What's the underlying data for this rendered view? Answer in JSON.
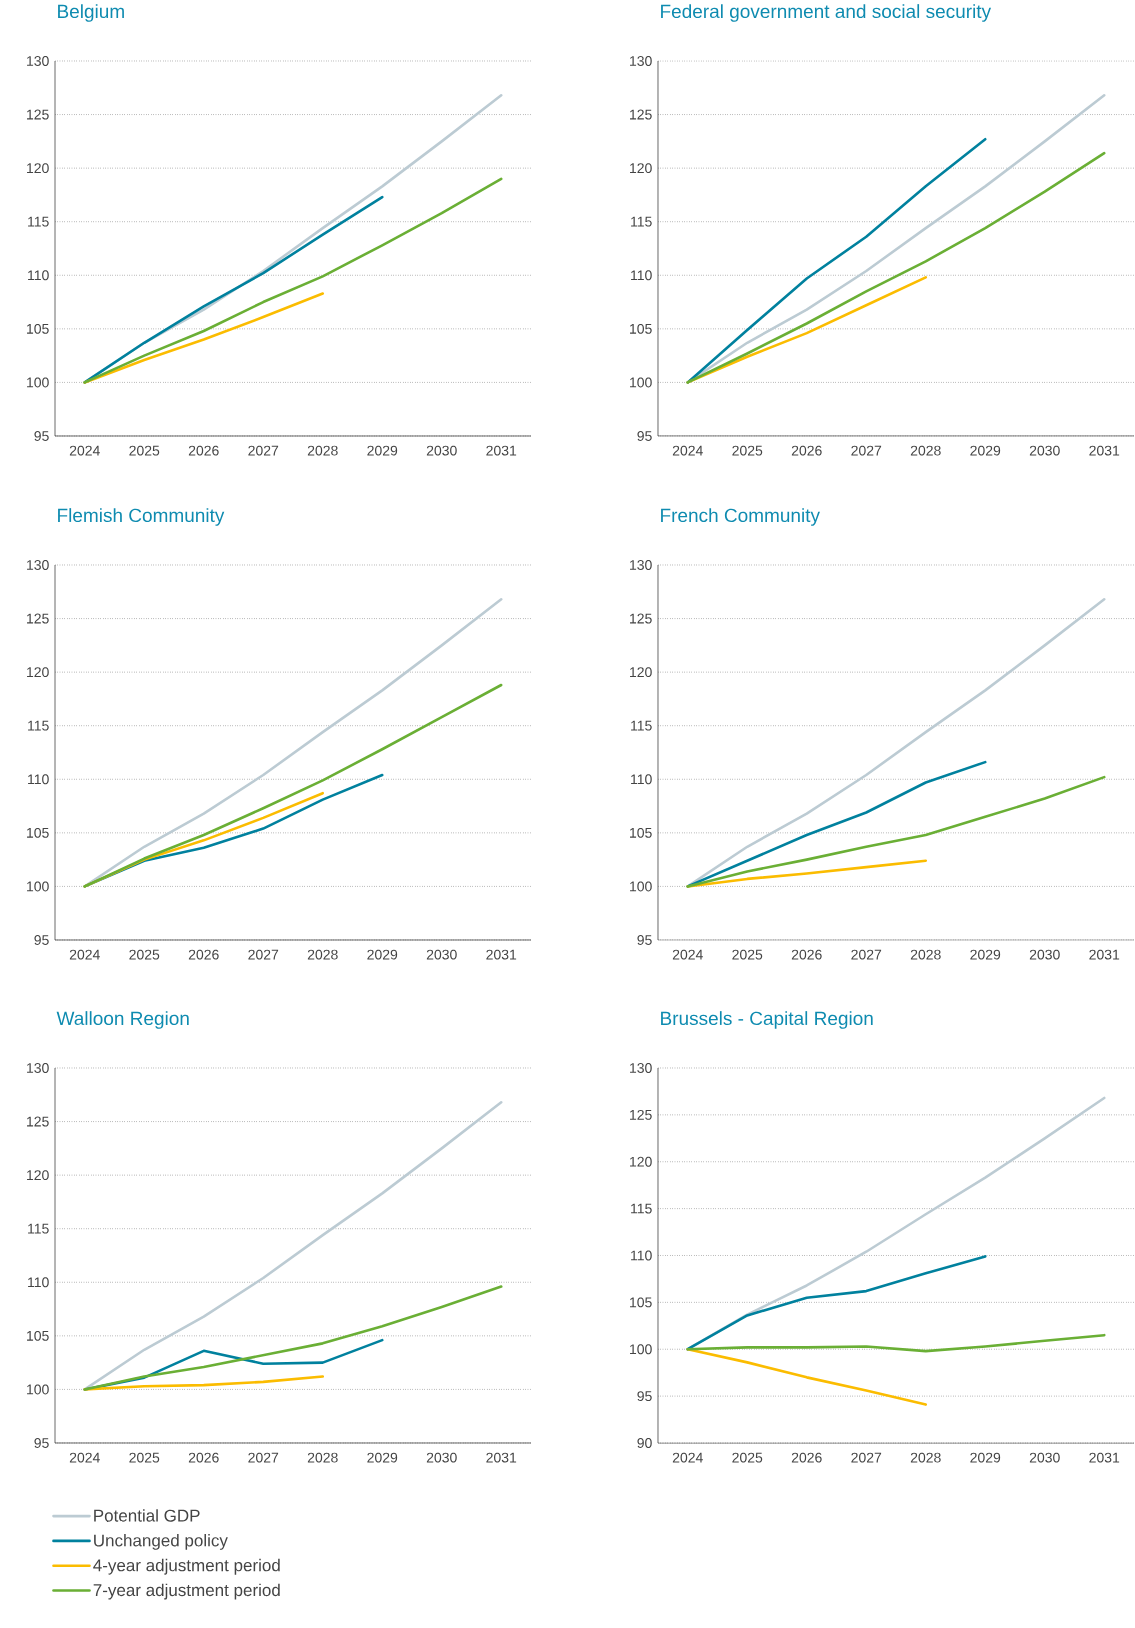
{
  "chart_data": [
    {
      "type": "line",
      "title": "Belgium",
      "categories": [
        "2024",
        "2025",
        "2026",
        "2027",
        "2028",
        "2029",
        "2030",
        "2031"
      ],
      "ylim": [
        95,
        130
      ],
      "yticks": [
        95,
        100,
        105,
        110,
        115,
        120,
        125,
        130
      ],
      "grid": "y",
      "series": [
        {
          "color": "#bccbd3",
          "values": [
            100,
            103.7,
            106.8,
            110.4,
            114.4,
            118.3,
            122.5,
            126.8
          ]
        },
        {
          "color": "#00819e",
          "values": [
            100,
            103.7,
            107.1,
            110.2,
            113.8,
            117.3,
            null,
            null
          ]
        },
        {
          "color": "#fbbc00",
          "values": [
            100,
            102.1,
            104.0,
            106.1,
            108.3,
            null,
            null,
            null
          ]
        },
        {
          "color": "#6aaf35",
          "values": [
            100,
            102.5,
            104.8,
            107.5,
            109.9,
            112.8,
            115.8,
            119.0
          ]
        }
      ]
    },
    {
      "type": "line",
      "title": "Federal government and social security",
      "categories": [
        "2024",
        "2025",
        "2026",
        "2027",
        "2028",
        "2029",
        "2030",
        "2031"
      ],
      "ylim": [
        95,
        130
      ],
      "yticks": [
        95,
        100,
        105,
        110,
        115,
        120,
        125,
        130
      ],
      "grid": "y",
      "series": [
        {
          "color": "#bccbd3",
          "values": [
            100,
            103.7,
            106.8,
            110.4,
            114.4,
            118.3,
            122.5,
            126.8
          ]
        },
        {
          "color": "#00819e",
          "values": [
            100,
            104.9,
            109.7,
            113.6,
            118.3,
            122.7,
            null,
            null
          ]
        },
        {
          "color": "#fbbc00",
          "values": [
            100,
            102.4,
            104.6,
            107.2,
            109.8,
            null,
            null,
            null
          ]
        },
        {
          "color": "#6aaf35",
          "values": [
            100,
            102.7,
            105.5,
            108.5,
            111.3,
            114.4,
            117.8,
            121.4
          ]
        }
      ]
    },
    {
      "type": "line",
      "title": "Flemish Community",
      "categories": [
        "2024",
        "2025",
        "2026",
        "2027",
        "2028",
        "2029",
        "2030",
        "2031"
      ],
      "ylim": [
        95,
        130
      ],
      "yticks": [
        95,
        100,
        105,
        110,
        115,
        120,
        125,
        130
      ],
      "grid": "y",
      "series": [
        {
          "color": "#bccbd3",
          "values": [
            100,
            103.7,
            106.8,
            110.4,
            114.4,
            118.3,
            122.5,
            126.8
          ]
        },
        {
          "color": "#00819e",
          "values": [
            100,
            102.4,
            103.6,
            105.4,
            108.1,
            110.4,
            null,
            null
          ]
        },
        {
          "color": "#fbbc00",
          "values": [
            100,
            102.5,
            104.3,
            106.4,
            108.7,
            null,
            null,
            null
          ]
        },
        {
          "color": "#6aaf35",
          "values": [
            100,
            102.6,
            104.8,
            107.3,
            109.9,
            112.8,
            115.8,
            118.8
          ]
        }
      ]
    },
    {
      "type": "line",
      "title": "French Community",
      "categories": [
        "2024",
        "2025",
        "2026",
        "2027",
        "2028",
        "2029",
        "2030",
        "2031"
      ],
      "ylim": [
        95,
        130
      ],
      "yticks": [
        95,
        100,
        105,
        110,
        115,
        120,
        125,
        130
      ],
      "grid": "y",
      "series": [
        {
          "color": "#bccbd3",
          "values": [
            100,
            103.7,
            106.8,
            110.4,
            114.4,
            118.3,
            122.5,
            126.8
          ]
        },
        {
          "color": "#00819e",
          "values": [
            100,
            102.4,
            104.8,
            106.9,
            109.7,
            111.6,
            null,
            null
          ]
        },
        {
          "color": "#fbbc00",
          "values": [
            100,
            100.7,
            101.2,
            101.8,
            102.4,
            null,
            null,
            null
          ]
        },
        {
          "color": "#6aaf35",
          "values": [
            100,
            101.4,
            102.5,
            103.7,
            104.8,
            106.5,
            108.2,
            110.2
          ]
        }
      ]
    },
    {
      "type": "line",
      "title": "Walloon Region",
      "categories": [
        "2024",
        "2025",
        "2026",
        "2027",
        "2028",
        "2029",
        "2030",
        "2031"
      ],
      "ylim": [
        95,
        130
      ],
      "yticks": [
        95,
        100,
        105,
        110,
        115,
        120,
        125,
        130
      ],
      "grid": "y",
      "legend": "bottom",
      "series": [
        {
          "name": "Potential GDP",
          "color": "#bccbd3",
          "values": [
            100,
            103.7,
            106.8,
            110.4,
            114.4,
            118.3,
            122.5,
            126.8
          ]
        },
        {
          "name": "Unchanged policy",
          "color": "#00819e",
          "values": [
            100,
            101.1,
            103.6,
            102.4,
            102.5,
            104.6,
            null,
            null
          ]
        },
        {
          "name": "4-year adjustment period",
          "color": "#fbbc00",
          "values": [
            100,
            100.3,
            100.4,
            100.7,
            101.2,
            null,
            null,
            null
          ]
        },
        {
          "name": "7-year adjustment period",
          "color": "#6aaf35",
          "values": [
            100,
            101.2,
            102.1,
            103.2,
            104.3,
            105.9,
            107.7,
            109.6
          ]
        }
      ]
    },
    {
      "type": "line",
      "title": "Brussels - Capital Region",
      "categories": [
        "2024",
        "2025",
        "2026",
        "2027",
        "2028",
        "2029",
        "2030",
        "2031"
      ],
      "ylim": [
        90,
        130
      ],
      "yticks": [
        90,
        95,
        100,
        105,
        110,
        115,
        120,
        125,
        130
      ],
      "grid": "y",
      "series": [
        {
          "color": "#bccbd3",
          "values": [
            100,
            103.7,
            106.8,
            110.4,
            114.4,
            118.3,
            122.5,
            126.8
          ]
        },
        {
          "color": "#00819e",
          "values": [
            100,
            103.6,
            105.5,
            106.2,
            108.1,
            109.9,
            null,
            null
          ]
        },
        {
          "color": "#fbbc00",
          "values": [
            100,
            98.6,
            97.0,
            95.6,
            94.1,
            null,
            null,
            null
          ]
        },
        {
          "color": "#6aaf35",
          "values": [
            100,
            100.2,
            100.2,
            100.3,
            99.8,
            100.3,
            100.9,
            101.5
          ]
        }
      ]
    }
  ]
}
